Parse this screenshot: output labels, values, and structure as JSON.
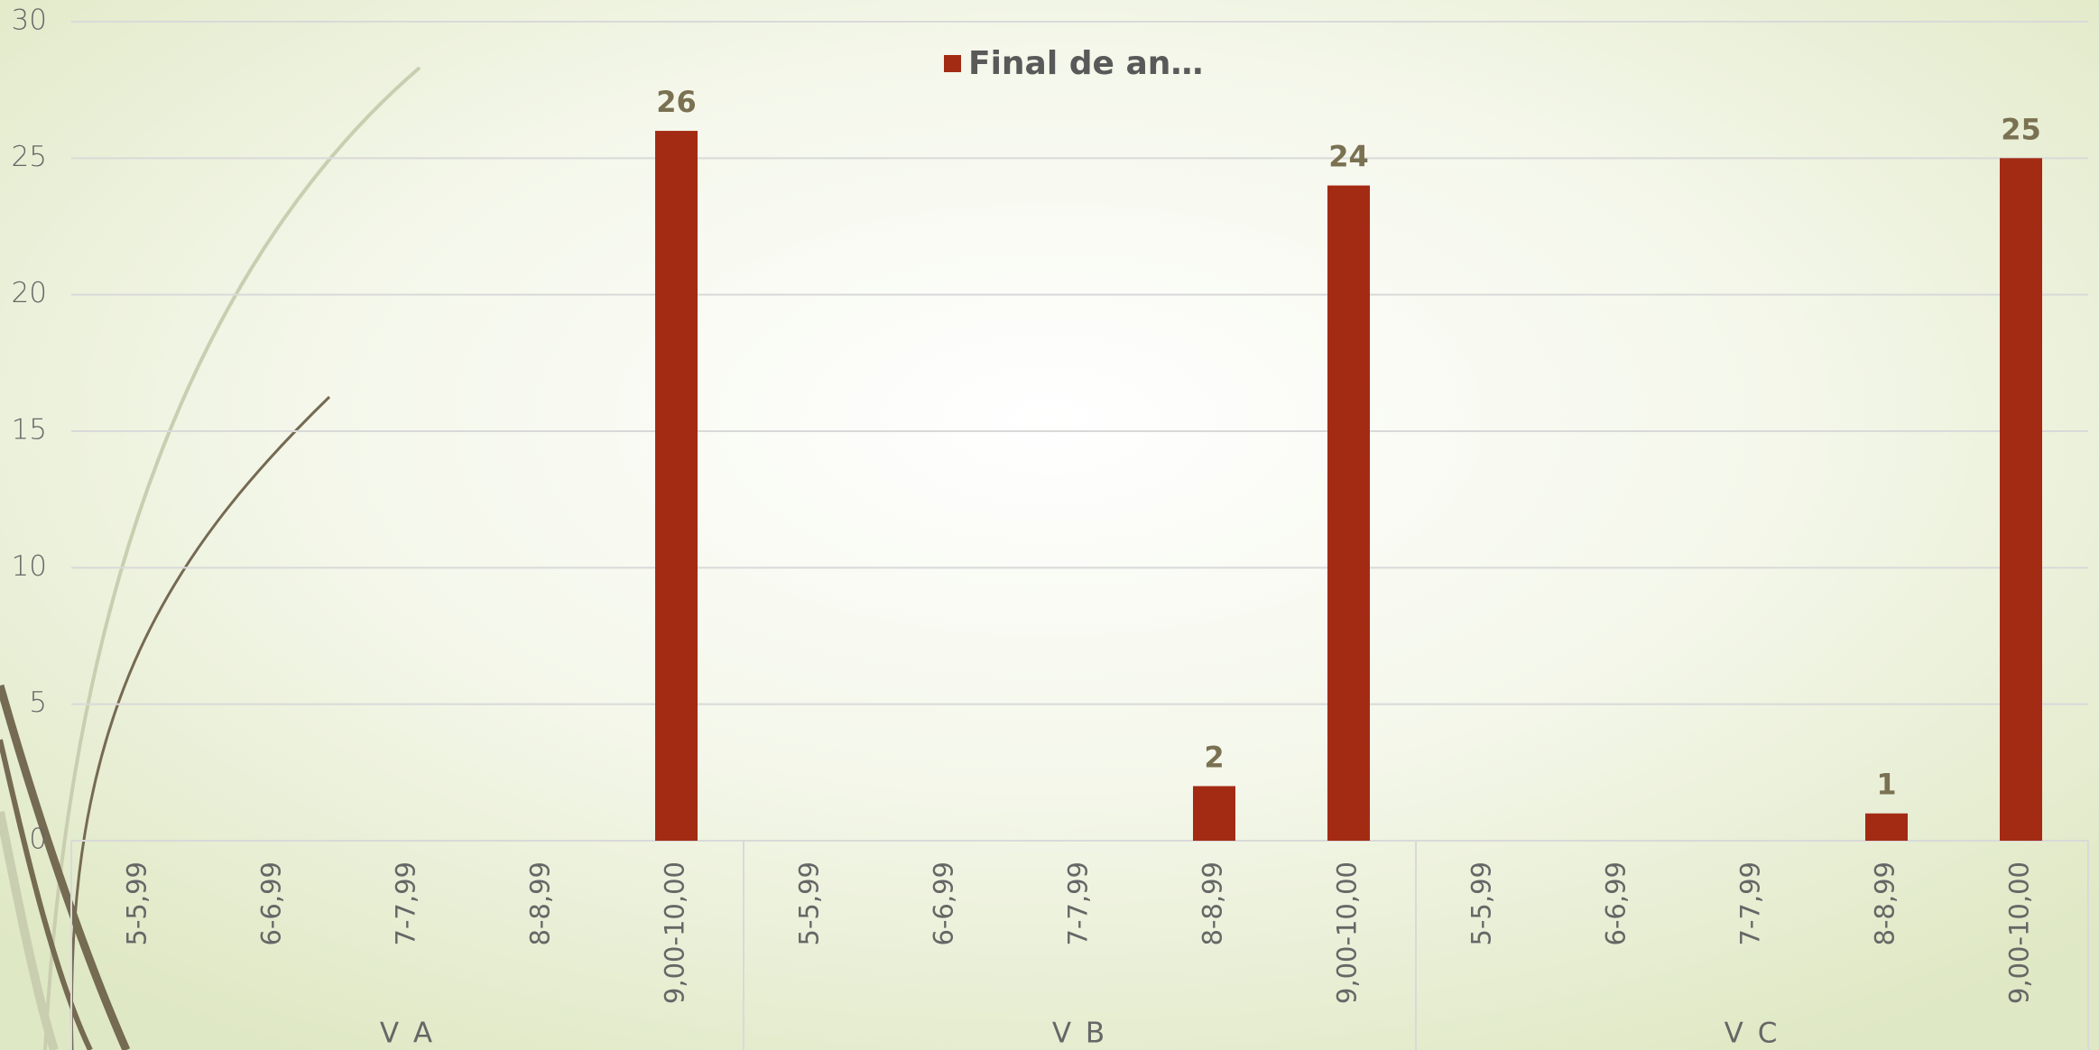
{
  "chart_data": {
    "type": "bar",
    "categories": [
      "5-5,99",
      "6-6,99",
      "7-7,99",
      "8-8,99",
      "9,00-10,00",
      "5-5,99",
      "6-6,99",
      "7-7,99",
      "8-8,99",
      "9,00-10,00",
      "5-5,99",
      "6-6,99",
      "7-7,99",
      "8-8,99",
      "9,00-10,00"
    ],
    "groups": [
      "V A",
      "V B",
      "V C"
    ],
    "series": [
      {
        "name": "Final de an…",
        "color": "#a32b14",
        "values": [
          null,
          null,
          null,
          null,
          26,
          null,
          null,
          null,
          2,
          24,
          null,
          null,
          null,
          1,
          25
        ]
      }
    ],
    "ylim": [
      0,
      30
    ],
    "yticks": [
      0,
      5,
      10,
      15,
      20,
      25,
      30
    ],
    "grid": true,
    "legend": "top"
  }
}
